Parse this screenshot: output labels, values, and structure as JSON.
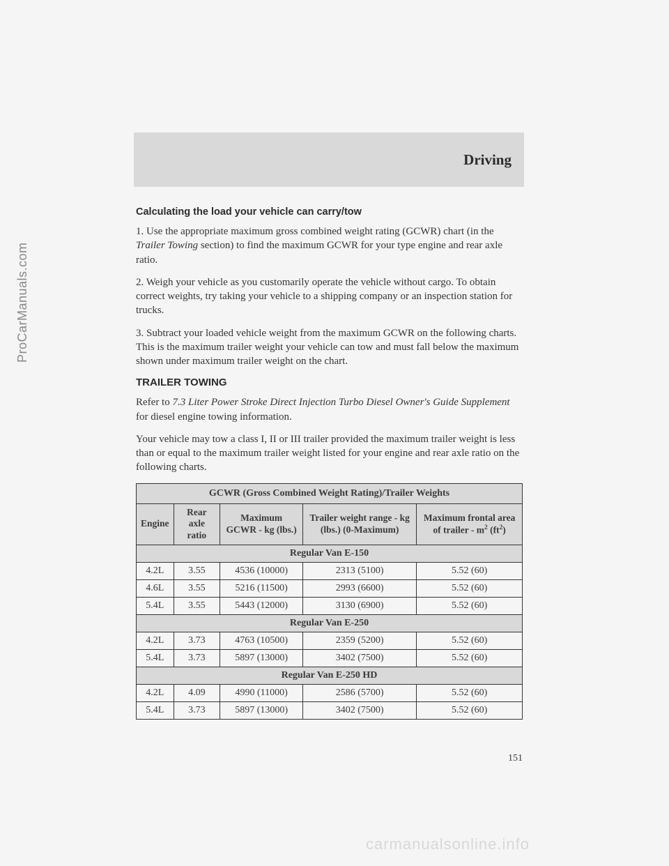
{
  "watermarks": {
    "left": "ProCarManuals.com",
    "bottom": "carmanualsonline.info"
  },
  "header": {
    "title": "Driving"
  },
  "section1": {
    "heading": "Calculating the load your vehicle can carry/tow",
    "p1a": "1. Use the appropriate maximum gross combined weight rating (GCWR) chart (in the ",
    "p1b": "Trailer Towing",
    "p1c": " section) to find the maximum GCWR for your type engine and rear axle ratio.",
    "p2": "2. Weigh your vehicle as you customarily operate the vehicle without cargo. To obtain correct weights, try taking your vehicle to a shipping company or an inspection station for trucks.",
    "p3": "3. Subtract your loaded vehicle weight from the maximum GCWR on the following charts. This is the maximum trailer weight your vehicle can tow and must fall below the maximum shown under maximum trailer weight on the chart."
  },
  "section2": {
    "heading": "TRAILER TOWING",
    "p1a": "Refer to ",
    "p1b": "7.3 Liter Power Stroke Direct Injection Turbo Diesel Owner's Guide Supplement",
    "p1c": " for diesel engine towing information.",
    "p2": "Your vehicle may tow a class I, II or III trailer provided the maximum trailer weight is less than or equal to the maximum trailer weight listed for your engine and rear axle ratio on the following charts."
  },
  "table": {
    "title": "GCWR (Gross Combined Weight Rating)/Trailer Weights",
    "cols": {
      "c1": "Engine",
      "c2": "Rear axle ratio",
      "c3": "Maximum GCWR - kg (lbs.)",
      "c4": "Trailer weight range - kg (lbs.) (0-Maximum)",
      "c5a": "Maximum frontal area of trailer - m",
      "c5b": " (ft",
      "c5c": ")"
    },
    "groups": [
      {
        "label": "Regular Van E-150",
        "rows": [
          {
            "engine": "4.2L",
            "ratio": "3.55",
            "gcwr": "4536 (10000)",
            "tw": "2313 (5100)",
            "area": "5.52 (60)"
          },
          {
            "engine": "4.6L",
            "ratio": "3.55",
            "gcwr": "5216 (11500)",
            "tw": "2993 (6600)",
            "area": "5.52 (60)"
          },
          {
            "engine": "5.4L",
            "ratio": "3.55",
            "gcwr": "5443 (12000)",
            "tw": "3130 (6900)",
            "area": "5.52 (60)"
          }
        ]
      },
      {
        "label": "Regular Van E-250",
        "rows": [
          {
            "engine": "4.2L",
            "ratio": "3.73",
            "gcwr": "4763 (10500)",
            "tw": "2359 (5200)",
            "area": "5.52 (60)"
          },
          {
            "engine": "5.4L",
            "ratio": "3.73",
            "gcwr": "5897 (13000)",
            "tw": "3402 (7500)",
            "area": "5.52 (60)"
          }
        ]
      },
      {
        "label": "Regular Van E-250 HD",
        "rows": [
          {
            "engine": "4.2L",
            "ratio": "4.09",
            "gcwr": "4990 (11000)",
            "tw": "2586 (5700)",
            "area": "5.52 (60)"
          },
          {
            "engine": "5.4L",
            "ratio": "3.73",
            "gcwr": "5897 (13000)",
            "tw": "3402 (7500)",
            "area": "5.52 (60)"
          }
        ]
      }
    ]
  },
  "pageNumber": "151"
}
